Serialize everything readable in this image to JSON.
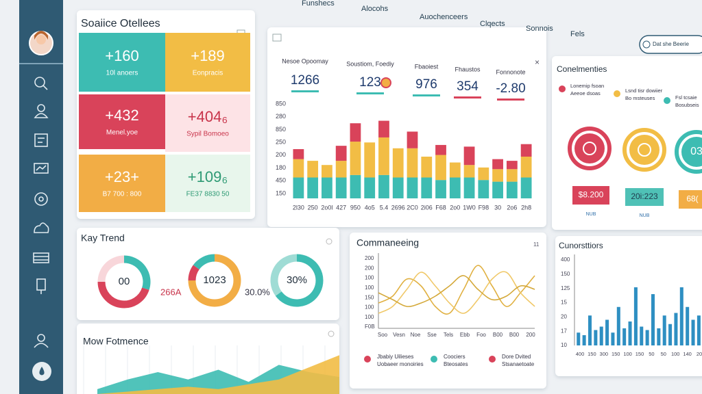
{
  "nav": {
    "tabs": [
      "Funshecs",
      "Alocohs",
      "Auochenceers",
      "Clqects",
      "Sonnois",
      "Fels"
    ],
    "button": "Dat she Beerie"
  },
  "stats": {
    "title": "Soaiice Otellees",
    "tiles": [
      {
        "value": "+160",
        "label": "10l anoers",
        "color": "#3dbcb2",
        "text": "#ffffff"
      },
      {
        "value": "+189",
        "label": "Eonpracis",
        "color": "#f2bd45",
        "text": "#ffffff"
      },
      {
        "value": "+432",
        "label": "Menel.yoe",
        "color": "#d9435a",
        "text": "#ffffff"
      },
      {
        "value": "+404₆",
        "label": "Sypil Bomoeo",
        "color": "#fde3e6",
        "text": "#c8334a"
      },
      {
        "value": "+23+",
        "label": "B7 700 : 800",
        "color": "#f2ad45",
        "text": "#ffffff"
      },
      {
        "value": "+109₆",
        "label": "FE37 8830 50",
        "color": "#e8f6ec",
        "text": "#2e9a74"
      }
    ]
  },
  "bars": {
    "close": "×",
    "headers": [
      {
        "label": "Nesoe Opoomay",
        "value": "1266",
        "color": "#3dbcb2"
      },
      {
        "label": "Soustiom, Foediy",
        "value": "123",
        "color": "#3dbcb2"
      },
      {
        "label": "Fbaoiest",
        "value": "976",
        "color": "#3dbcb2"
      },
      {
        "label": "Fhaustos",
        "value": "354",
        "color": "#d9435a"
      },
      {
        "label": "Fonnonote",
        "value": "-2.80",
        "color": "#d9435a"
      }
    ],
    "y_axis_labels": [
      "850",
      "280",
      "850",
      "250",
      "200",
      "180",
      "450",
      "150"
    ],
    "chart": {
      "type": "bar",
      "stacked": true,
      "ylim": [
        0,
        100
      ],
      "categories": [
        "2l30",
        "250",
        "2o0l",
        "427",
        "950",
        "4o5",
        "5.4",
        "2696",
        "2C0",
        "2i06",
        "F68",
        "2o0",
        "1W0",
        "F98",
        "30",
        "2o6",
        "2h8"
      ],
      "series": [
        {
          "color": "#3dbcb2",
          "values": [
            25,
            25,
            25,
            25,
            28,
            25,
            28,
            25,
            25,
            25,
            22,
            25,
            25,
            22,
            20,
            20,
            25
          ]
        },
        {
          "color": "#f2bd45",
          "values": [
            22,
            20,
            15,
            20,
            40,
            42,
            45,
            35,
            35,
            25,
            30,
            18,
            15,
            15,
            15,
            15,
            25
          ]
        },
        {
          "color": "#d9435a",
          "values": [
            12,
            0,
            0,
            18,
            22,
            0,
            20,
            0,
            20,
            0,
            12,
            0,
            22,
            0,
            12,
            10,
            15
          ]
        }
      ]
    }
  },
  "comments": {
    "title": "Conelmenties",
    "legend": [
      {
        "color": "#d9435a",
        "lines": [
          "Lonemip fsoan",
          "Aeeoe dsoas"
        ]
      },
      {
        "color": "#f2bd45",
        "lines": [
          "Lsnd tisr dowiier",
          "Bo msteuses"
        ]
      },
      {
        "color": "#3dbcb2",
        "lines": [
          "Fsl tcsaie",
          "Bosubseis"
        ]
      }
    ],
    "rings": [
      {
        "color": "#d9435a",
        "text": ""
      },
      {
        "color": "#f2bd45",
        "text": ""
      },
      {
        "color": "#3dbcb2",
        "text": "03"
      }
    ],
    "boxes": [
      {
        "value": "$8.200",
        "color": "#d9435a",
        "text": "#ffffff",
        "sub": "NUB"
      },
      {
        "value": "20i:223",
        "color": "#4fc1b6",
        "text": "#1f3b4d",
        "sub": "NUB"
      },
      {
        "value": "68(",
        "color": "#f2ad45",
        "text": "#ffffff",
        "sub": ""
      }
    ]
  },
  "trend": {
    "title": "Kay Trend",
    "donuts": [
      {
        "center": "00",
        "type": "pie",
        "segments": [
          {
            "color": "#3dbcb2",
            "value": 30
          },
          {
            "color": "#d9435a",
            "value": 45
          },
          {
            "color": "#f8d6da",
            "value": 25
          }
        ]
      },
      {
        "center": "1023",
        "type": "pie",
        "segments": [
          {
            "color": "#f2ad45",
            "value": 75
          },
          {
            "color": "#d9435a",
            "value": 10
          },
          {
            "color": "#3dbcb2",
            "value": 15
          }
        ]
      },
      {
        "center": "30%",
        "type": "pie",
        "segments": [
          {
            "color": "#3dbcb2",
            "value": 65
          },
          {
            "color": "#9fdcd5",
            "value": 35
          }
        ]
      }
    ],
    "side_labels": [
      "266A",
      "30.0%"
    ]
  },
  "lines": {
    "title": "Commaneeing",
    "badge": "11",
    "y_axis_labels": [
      "200",
      "200",
      "100",
      "100",
      "150",
      "100",
      "100",
      "F0B"
    ],
    "x_labels": [
      "Soo",
      "Vesn",
      "Noe",
      "Sse",
      "Tels",
      "Ebb",
      "Foo",
      "B00",
      "B00",
      "200"
    ],
    "chart": {
      "type": "line",
      "ylim": [
        0,
        100
      ],
      "series": [
        {
          "color": "#e0b040",
          "values": [
            35,
            45,
            70,
            60,
            30,
            20,
            55,
            90,
            60,
            30,
            50,
            75
          ]
        },
        {
          "color": "#f0c868",
          "values": [
            20,
            30,
            55,
            80,
            60,
            35,
            20,
            40,
            70,
            80,
            50,
            30
          ]
        },
        {
          "color": "#d4a838",
          "values": [
            50,
            40,
            30,
            35,
            45,
            60,
            75,
            55,
            40,
            45,
            60,
            55
          ]
        }
      ]
    },
    "legend": [
      {
        "color": "#d9435a",
        "lines": [
          "Jbabiy Uilieses",
          "Uobaeer monoiries"
        ]
      },
      {
        "color": "#3dbcb2",
        "lines": [
          "Coociers",
          "Bteosates"
        ]
      },
      {
        "color": "#d9435a",
        "lines": [
          "Dore Dvited",
          "Stsanaetoate"
        ]
      }
    ]
  },
  "columns": {
    "title": "Cunorsttiors",
    "y_axis_labels": [
      "400",
      "150",
      "125",
      "15",
      "20",
      "17",
      "10"
    ],
    "x_labels": [
      "400",
      "150",
      "300",
      "150",
      "100",
      "150",
      "50",
      "50",
      "100",
      "140",
      "20"
    ],
    "chart": {
      "type": "bar",
      "ylim": [
        0,
        100
      ],
      "color": "#2e8fc2",
      "values": [
        15,
        12,
        35,
        18,
        22,
        30,
        15,
        45,
        20,
        28,
        68,
        22,
        18,
        60,
        20,
        35,
        25,
        38,
        68,
        45,
        30,
        35
      ]
    }
  },
  "performance": {
    "title": "Mow Fotmence",
    "chart": {
      "type": "area",
      "ylim": [
        0,
        100
      ],
      "series": [
        {
          "color": "#3dbcb2",
          "values": [
            10,
            30,
            45,
            30,
            50,
            25,
            60,
            45,
            35
          ]
        },
        {
          "color": "#f2bd45",
          "values": [
            0,
            5,
            10,
            15,
            10,
            20,
            30,
            55,
            80
          ]
        }
      ]
    }
  }
}
